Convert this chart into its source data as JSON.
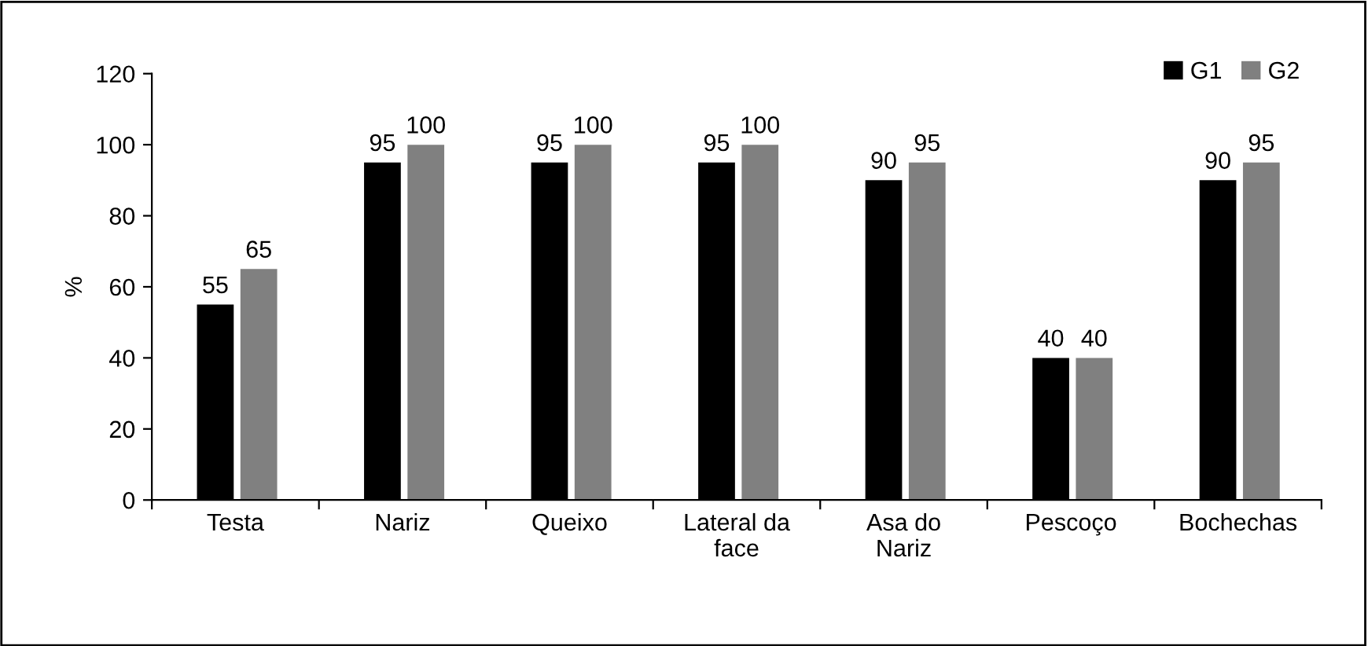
{
  "chart_data": {
    "type": "bar",
    "ylabel": "%",
    "categories": [
      "Testa",
      "Nariz",
      "Queixo",
      "Lateral da\nface",
      "Asa do\nNariz",
      "Pescoço",
      "Bochechas"
    ],
    "series": [
      {
        "name": "G1",
        "color": "#000000",
        "values": [
          55,
          95,
          95,
          95,
          90,
          40,
          90
        ]
      },
      {
        "name": "G2",
        "color": "#808080",
        "values": [
          65,
          100,
          100,
          100,
          95,
          40,
          95
        ]
      }
    ],
    "ylim": [
      0,
      120
    ],
    "yticks": [
      0,
      20,
      40,
      60,
      80,
      100,
      120
    ],
    "grid": false,
    "legend": "top right",
    "data_labels": true
  }
}
